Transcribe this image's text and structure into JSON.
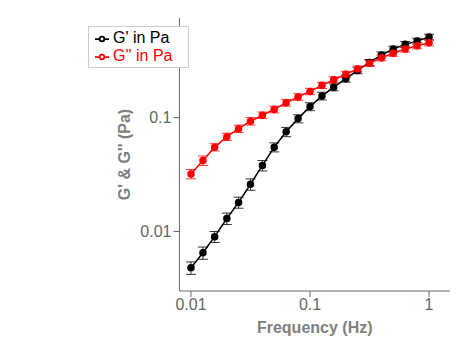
{
  "chart_data": {
    "type": "line",
    "xlabel": "Frequency (Hz)",
    "ylabel": "G' & G'' (Pa)",
    "log": true,
    "xlim": [
      0.008,
      1.5
    ],
    "ylim": [
      0.003,
      0.75
    ],
    "xticks": [
      0.01,
      0.1,
      1
    ],
    "yticks": [
      0.01,
      0.1
    ],
    "legend": "upper left",
    "grid": false,
    "x": [
      0.01,
      0.0126,
      0.0158,
      0.02,
      0.0251,
      0.0316,
      0.0398,
      0.05,
      0.063,
      0.0794,
      0.1,
      0.126,
      0.158,
      0.2,
      0.251,
      0.316,
      0.398,
      0.5,
      0.631,
      0.794,
      1.0
    ],
    "series": [
      {
        "name": "G' in Pa",
        "color": "#000000",
        "marker": "circle",
        "values": [
          0.0048,
          0.0065,
          0.009,
          0.013,
          0.018,
          0.026,
          0.038,
          0.055,
          0.075,
          0.098,
          0.125,
          0.155,
          0.185,
          0.22,
          0.26,
          0.305,
          0.355,
          0.4,
          0.44,
          0.47,
          0.51
        ],
        "yerr": [
          0.0006,
          0.0008,
          0.001,
          0.0015,
          0.002,
          0.003,
          0.004,
          0.005,
          0.007,
          0.008,
          0.01,
          0.012,
          0.013,
          0.015,
          0.017,
          0.019,
          0.022,
          0.024,
          0.026,
          0.028,
          0.03
        ]
      },
      {
        "name": "G'' in Pa",
        "color": "#FF0000",
        "marker": "circle",
        "values": [
          0.032,
          0.042,
          0.055,
          0.068,
          0.08,
          0.093,
          0.105,
          0.118,
          0.135,
          0.152,
          0.17,
          0.192,
          0.215,
          0.24,
          0.268,
          0.3,
          0.335,
          0.368,
          0.4,
          0.428,
          0.455
        ],
        "yerr": [
          0.003,
          0.004,
          0.004,
          0.005,
          0.006,
          0.007,
          0.007,
          0.008,
          0.009,
          0.01,
          0.011,
          0.012,
          0.013,
          0.015,
          0.016,
          0.018,
          0.02,
          0.022,
          0.024,
          0.026,
          0.028
        ]
      }
    ]
  }
}
